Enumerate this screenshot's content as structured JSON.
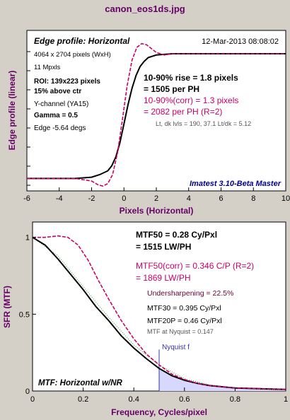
{
  "figure_title": "canon_eos1ds.jpg",
  "colors": {
    "background": "#d4d0c8",
    "plot_bg": "#ffffff",
    "title_purple": "#660066",
    "axis_label_purple": "#660066",
    "raw_curve": "#000000",
    "corrected_curve": "#cc0066",
    "annotation_blue": "#000099",
    "nyquist_fill": "#d8d8ff",
    "nyquist_line": "#3333aa"
  },
  "chart_data": [
    {
      "type": "line",
      "panel_title": "Edge profile: Horizontal",
      "date": "12-Mar-2013 08:08:02",
      "xlabel": "Pixels (Horizontal)",
      "ylabel": "Edge profile (linear)",
      "xlim": [
        -6,
        10
      ],
      "x_ticks": [
        "-6",
        "-4",
        "-2",
        "0",
        "2",
        "4",
        "6",
        "8",
        "10"
      ],
      "grid": false,
      "info_lines": [
        "4064 x 2704 pixels (WxH)",
        "11 Mpxls",
        "ROI:  139x223 pixels",
        "15% above ctr",
        "Y-channel  (YA15)",
        "Gamma = 0.5",
        "Edge -5.64 degs"
      ],
      "annotations": {
        "rise_line1": "10-90% rise = 1.8 pixels",
        "rise_line2": "= 1505 per PH",
        "corr_line1": "10-90%(corr) = 1.3 pixels",
        "corr_line2": "= 2082 per PH  (R=2)",
        "levels": "Lt, dk lvls = 190, 37.1   Lt/dk = 5.12",
        "watermark": "Imatest 3.10-Beta Master"
      },
      "series": [
        {
          "style": "solid-black",
          "x": [
            -6,
            -4,
            -3,
            -2,
            -1.5,
            -1,
            -0.75,
            -0.5,
            -0.25,
            0,
            0.25,
            0.5,
            0.75,
            1,
            1.25,
            1.5,
            2,
            3,
            4,
            6,
            8,
            10
          ],
          "y": [
            0.02,
            0.02,
            0.02,
            0.03,
            0.05,
            0.08,
            0.12,
            0.19,
            0.3,
            0.45,
            0.6,
            0.73,
            0.83,
            0.9,
            0.94,
            0.97,
            0.99,
            1.0,
            1.0,
            1.0,
            1.0,
            1.0
          ]
        },
        {
          "style": "dashed-magenta",
          "x": [
            -6,
            -4,
            -3,
            -2,
            -1.6,
            -1.3,
            -1,
            -0.7,
            -0.4,
            -0.1,
            0.2,
            0.5,
            0.8,
            1.1,
            1.4,
            1.7,
            2.0,
            2.5,
            3,
            4,
            6,
            8,
            10
          ],
          "y": [
            0.02,
            0.02,
            0.02,
            0.0,
            -0.03,
            -0.04,
            -0.02,
            0.05,
            0.22,
            0.48,
            0.75,
            0.95,
            1.05,
            1.08,
            1.07,
            1.04,
            1.01,
            0.99,
            1.0,
            1.0,
            1.0,
            1.0,
            1.0
          ]
        }
      ]
    },
    {
      "type": "line",
      "panel_title": "MTF: Horizontal w/NR",
      "xlabel": "Frequency, Cycles/pixel",
      "ylabel": "SFR (MTF)",
      "xlim": [
        0,
        1
      ],
      "ylim": [
        0,
        1.1
      ],
      "x_ticks": [
        "0",
        "0.2",
        "0.4",
        "0.6",
        "0.8",
        "1"
      ],
      "y_ticks": [
        "0",
        "0.5",
        "1"
      ],
      "grid": false,
      "nyquist": {
        "x": 0.5,
        "label": "Nyquist f"
      },
      "annotations": {
        "mtf50_line1": "MTF50 = 0.28 Cy/Pxl",
        "mtf50_line2": "= 1515 LW/PH",
        "mtf50corr_line1": "MTF50(corr) = 0.346 C/P  (R=2)",
        "mtf50corr_line2": "= 1869 LW/PH",
        "undersharpening": "Undersharpening = 22.5%",
        "mtf30": "MTF30 = 0.395 Cy/Pxl",
        "mtf20p": "MTF20P = 0.46 Cy/Pxl",
        "mtf_nyquist": "MTF at Nyquist = 0.147"
      },
      "series": [
        {
          "style": "solid-black",
          "x": [
            0,
            0.05,
            0.1,
            0.15,
            0.2,
            0.25,
            0.3,
            0.35,
            0.4,
            0.45,
            0.5,
            0.55,
            0.6,
            0.65,
            0.7,
            0.8,
            0.9,
            1.0
          ],
          "y": [
            1.0,
            0.95,
            0.86,
            0.76,
            0.66,
            0.55,
            0.46,
            0.36,
            0.28,
            0.21,
            0.147,
            0.1,
            0.07,
            0.05,
            0.035,
            0.02,
            0.015,
            0.01
          ]
        },
        {
          "style": "dashed-magenta",
          "x": [
            0,
            0.05,
            0.1,
            0.14,
            0.18,
            0.22,
            0.26,
            0.3,
            0.35,
            0.4,
            0.45,
            0.5,
            0.55,
            0.6,
            0.65,
            0.7,
            0.8,
            0.9,
            1.0
          ],
          "y": [
            1.0,
            1.0,
            1.01,
            1.0,
            0.95,
            0.85,
            0.72,
            0.6,
            0.46,
            0.34,
            0.24,
            0.17,
            0.11,
            0.075,
            0.05,
            0.035,
            0.02,
            0.015,
            0.01
          ]
        },
        {
          "style": "dotted-green",
          "x": [
            0,
            0.1,
            0.2,
            0.3,
            0.4,
            0.5,
            0.6,
            0.7,
            0.8,
            0.9,
            1.0
          ],
          "y": [
            1.0,
            0.88,
            0.68,
            0.48,
            0.3,
            0.17,
            0.08,
            0.04,
            0.02,
            0.01,
            0.005
          ]
        }
      ]
    }
  ]
}
